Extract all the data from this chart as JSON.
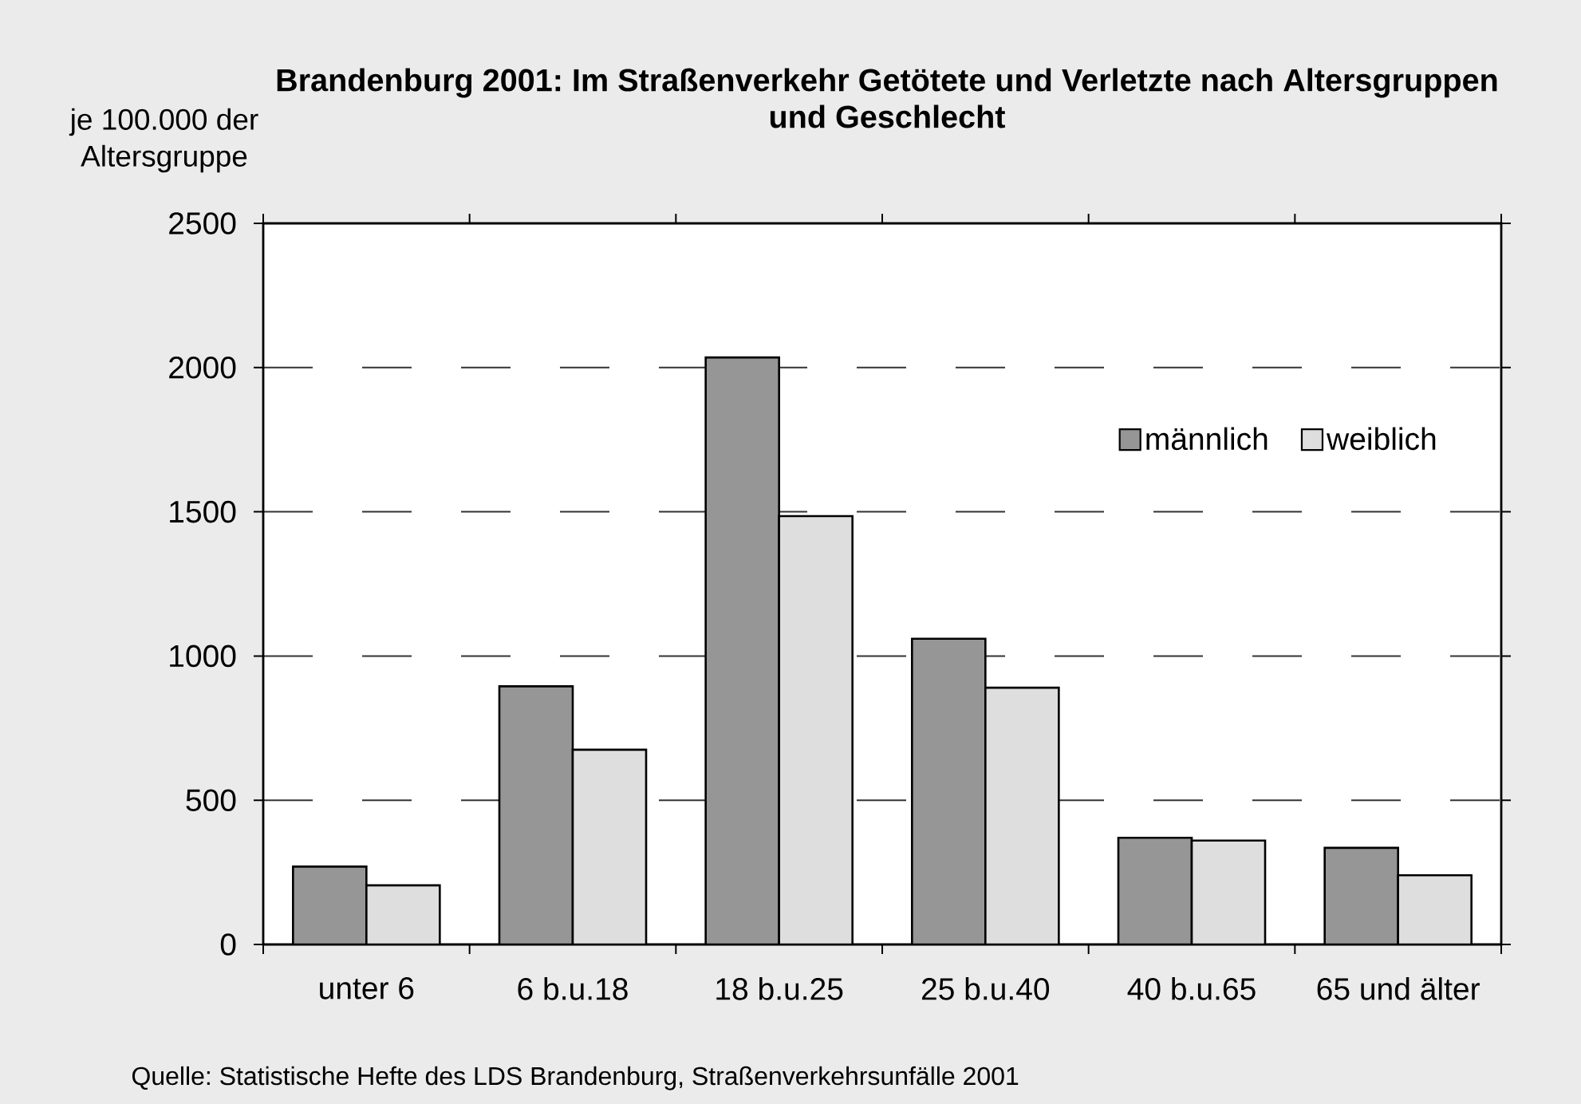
{
  "chart_data": {
    "type": "bar",
    "title": "Brandenburg 2001: Im Straßenverkehr Getötete und Verletzte nach Altersgruppen und Geschlecht",
    "ylabel": "je 100.000 der Altersgruppe",
    "annotations": [
      "Quelle: Statistische Hefte des LDS Brandenburg, Straßenverkehrsunfälle 2001"
    ],
    "categories": [
      "unter 6",
      "6 b.u.18",
      "18 b.u.25",
      "25 b.u.40",
      "40 b.u.65",
      "65 und älter"
    ],
    "series": [
      {
        "name": "männlich",
        "color": "#969696",
        "values": [
          270,
          895,
          2035,
          1060,
          370,
          335
        ]
      },
      {
        "name": "weiblich",
        "color": "#dedede",
        "values": [
          205,
          675,
          1485,
          890,
          360,
          240
        ]
      }
    ],
    "ylim": [
      0,
      2500
    ],
    "yticks": [
      0,
      500,
      1000,
      1500,
      2000,
      2500
    ],
    "grid": "y",
    "legend": "top right"
  }
}
